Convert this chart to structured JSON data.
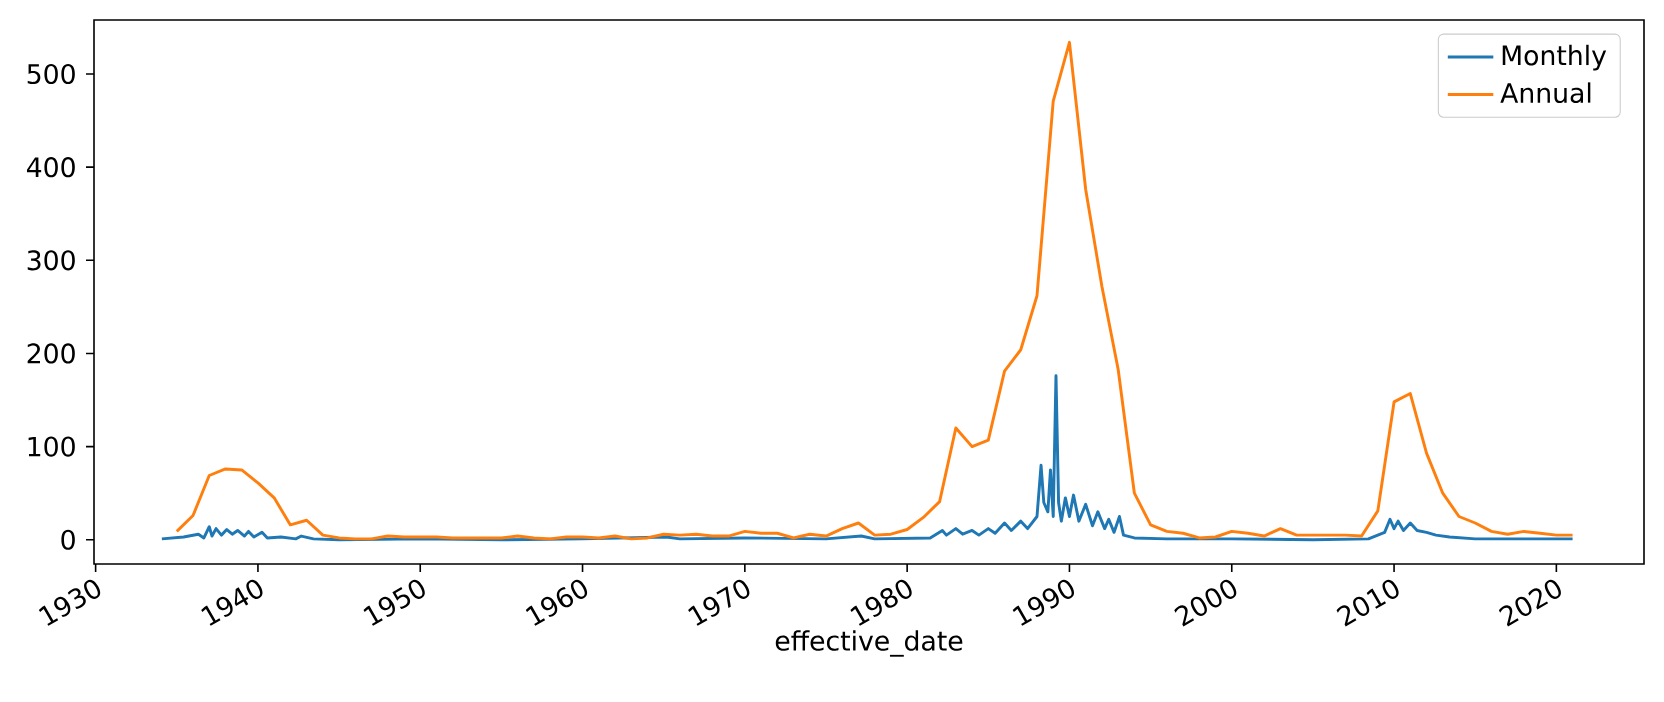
{
  "chart_data": {
    "type": "line",
    "xlabel": "effective_date",
    "xlim": [
      1929.9,
      2025.4
    ],
    "xticks": [
      1930,
      1940,
      1950,
      1960,
      1970,
      1980,
      1990,
      2000,
      2010,
      2020
    ],
    "ylim": [
      -26,
      558
    ],
    "yticks": [
      0,
      100,
      200,
      300,
      400,
      500
    ],
    "legend": "top right",
    "grid": false,
    "marker": "none",
    "line_style": "solid",
    "series": [
      {
        "name": "Monthly",
        "color": "#1f77b4",
        "x": [
          1934.08,
          1935.42,
          1936.33,
          1936.67,
          1937,
          1937.17,
          1937.42,
          1937.75,
          1938.08,
          1938.42,
          1938.75,
          1939.17,
          1939.42,
          1939.75,
          1940.25,
          1940.58,
          1941.42,
          1942.33,
          1942.67,
          1943.42,
          1945,
          1950,
          1955,
          1960,
          1965.17,
          1966,
          1970,
          1975,
          1977.17,
          1978,
          1981.42,
          1982.17,
          1982.42,
          1983,
          1983.42,
          1984,
          1984.42,
          1985,
          1985.42,
          1986,
          1986.42,
          1987,
          1987.42,
          1988,
          1988.25,
          1988.42,
          1988.67,
          1988.83,
          1989,
          1989.17,
          1989.33,
          1989.5,
          1989.75,
          1990,
          1990.25,
          1990.58,
          1991,
          1991.42,
          1991.75,
          1992.17,
          1992.42,
          1992.75,
          1993.08,
          1993.33,
          1994,
          1996,
          2000,
          2005,
          2008.42,
          2009.42,
          2009.75,
          2010,
          2010.25,
          2010.58,
          2011,
          2011.42,
          2012,
          2012.58,
          2013.42,
          2015,
          2021
        ],
        "values": [
          1,
          3,
          6,
          2,
          14,
          4,
          12,
          5,
          11,
          6,
          10,
          4,
          9,
          3,
          8,
          2,
          3,
          1,
          4,
          1,
          0,
          1,
          0,
          1,
          3,
          1,
          2,
          1,
          4,
          1,
          2,
          10,
          5,
          12,
          6,
          10,
          5,
          12,
          7,
          18,
          10,
          20,
          12,
          25,
          80,
          40,
          30,
          75,
          25,
          176,
          40,
          20,
          45,
          25,
          48,
          20,
          38,
          15,
          30,
          12,
          22,
          8,
          25,
          5,
          2,
          1,
          1,
          0,
          1,
          8,
          22,
          12,
          20,
          10,
          18,
          10,
          8,
          5,
          3,
          1,
          1
        ]
      },
      {
        "name": "Annual",
        "color": "#ff7f0e",
        "x": [
          1935,
          1936,
          1937,
          1938,
          1939,
          1940,
          1941,
          1942,
          1943,
          1944,
          1945,
          1946,
          1947,
          1948,
          1949,
          1950,
          1951,
          1952,
          1953,
          1954,
          1955,
          1956,
          1957,
          1958,
          1959,
          1960,
          1961,
          1962,
          1963,
          1964,
          1965,
          1966,
          1967,
          1968,
          1969,
          1970,
          1971,
          1972,
          1973,
          1974,
          1975,
          1976,
          1977,
          1978,
          1979,
          1980,
          1981,
          1982,
          1983,
          1984,
          1985,
          1986,
          1987,
          1988,
          1989,
          1990,
          1991,
          1992,
          1993,
          1994,
          1995,
          1996,
          1997,
          1998,
          1999,
          2000,
          2001,
          2002,
          2003,
          2004,
          2005,
          2006,
          2007,
          2008,
          2009,
          2010,
          2011,
          2012,
          2013,
          2014,
          2015,
          2016,
          2017,
          2018,
          2019,
          2020,
          2021
        ],
        "values": [
          9,
          26,
          69,
          76,
          75,
          61,
          45,
          16,
          21,
          5,
          2,
          1,
          1,
          4,
          3,
          3,
          3,
          2,
          2,
          2,
          2,
          4,
          2,
          1,
          3,
          3,
          2,
          4,
          1,
          2,
          6,
          5,
          6,
          4,
          4,
          9,
          7,
          7,
          2,
          6,
          4,
          12,
          18,
          5,
          6,
          11,
          24,
          41,
          120,
          100,
          107,
          181,
          204,
          262,
          471,
          534,
          376,
          272,
          183,
          50,
          16,
          9,
          7,
          2,
          3,
          9,
          7,
          4,
          12,
          5,
          5,
          5,
          5,
          4,
          31,
          148,
          157,
          93,
          50,
          25,
          18,
          9,
          6,
          9,
          7,
          5,
          5
        ]
      }
    ]
  }
}
